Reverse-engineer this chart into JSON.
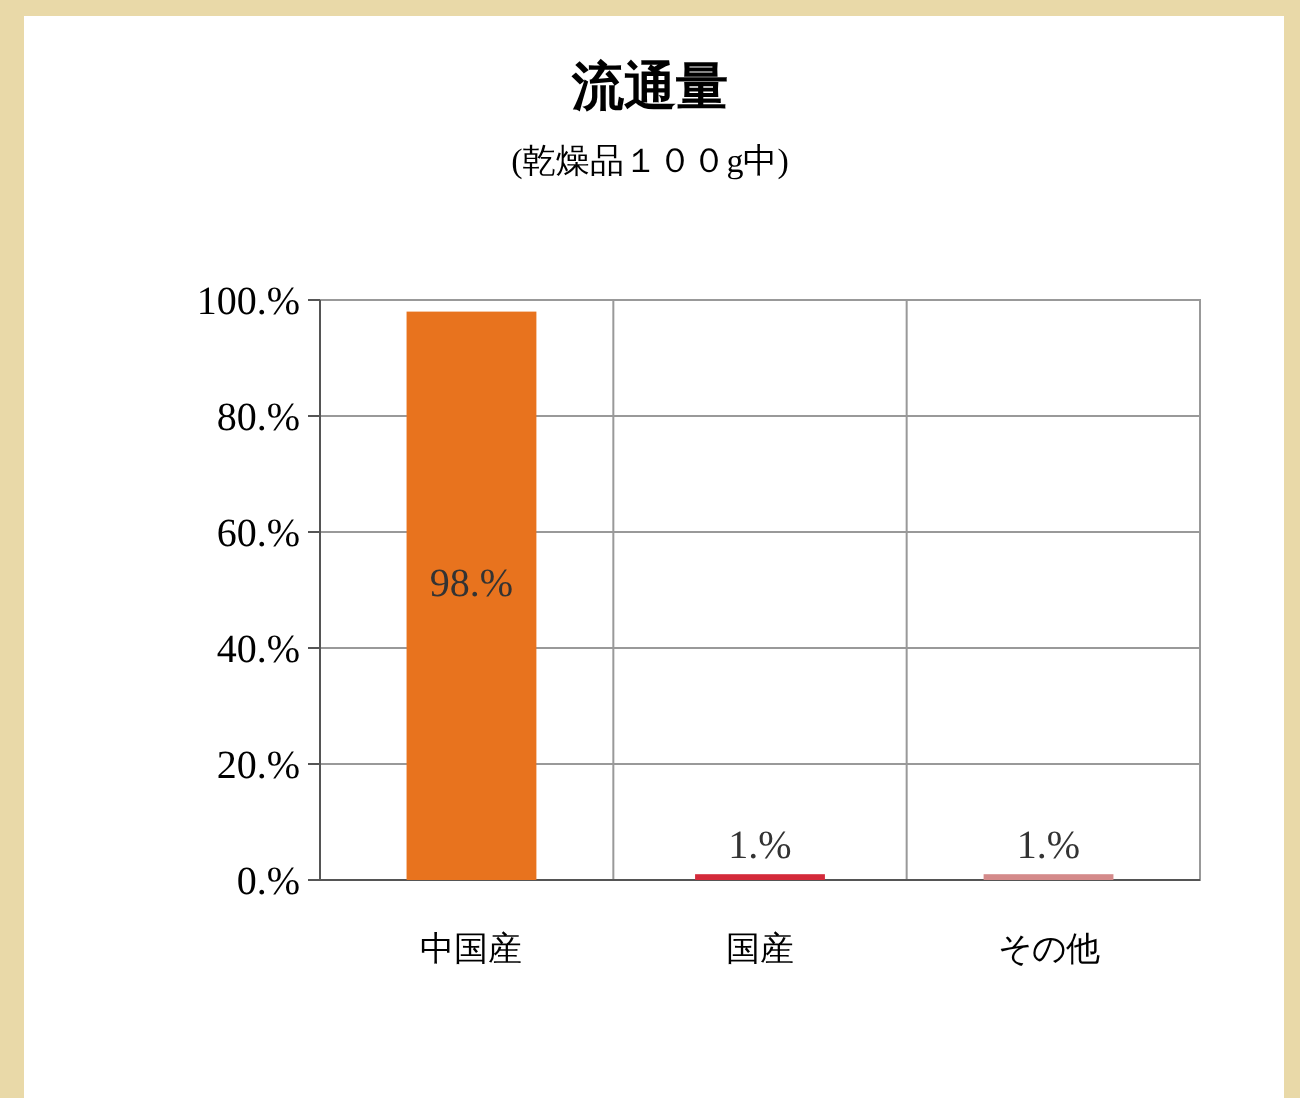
{
  "chart_data": {
    "type": "bar",
    "title": "流通量",
    "subtitle": "(乾燥品１００g中)",
    "categories": [
      "中国産",
      "国産",
      "その他"
    ],
    "values": [
      98,
      1,
      1
    ],
    "colors": [
      "#e8731e",
      "#d42a3a",
      "#d48a8a"
    ],
    "value_labels": [
      "98.%",
      "1.%",
      "1.%"
    ],
    "ylim": [
      0,
      100
    ],
    "yticks": [
      {
        "value": 0,
        "label": "0.%"
      },
      {
        "value": 20,
        "label": "20.%"
      },
      {
        "value": 40,
        "label": "40.%"
      },
      {
        "value": 60,
        "label": "60.%"
      },
      {
        "value": 80,
        "label": "80.%"
      },
      {
        "value": 100,
        "label": "100.%"
      }
    ],
    "grid": "y"
  }
}
